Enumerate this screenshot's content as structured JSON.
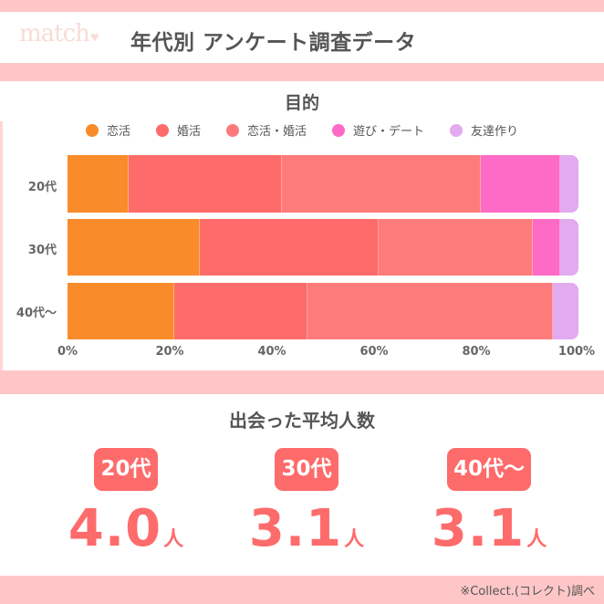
{
  "header": {
    "logo": "match",
    "title": "年代別 アンケート調査データ"
  },
  "colors": {
    "band": "#fec6c6",
    "accent": "#fe6b6b",
    "text": "#555555",
    "series": [
      "#fa8b2a",
      "#fe6b6b",
      "#fe7b7b",
      "#fe6bc6",
      "#e2aaef"
    ]
  },
  "chart_data": {
    "type": "bar",
    "orientation": "horizontal",
    "stacked": true,
    "normalized": true,
    "title": "目的",
    "categories": [
      "20代",
      "30代",
      "40代〜"
    ],
    "series": [
      {
        "name": "恋活",
        "color": "#fa8b2a",
        "values": [
          12,
          26,
          21
        ]
      },
      {
        "name": "婚活",
        "color": "#fe6b6b",
        "values": [
          30,
          35,
          26
        ]
      },
      {
        "name": "恋活・婚活",
        "color": "#fe7b7b",
        "values": [
          39,
          30,
          48
        ]
      },
      {
        "name": "遊び・デート",
        "color": "#fe6bc6",
        "values": [
          15.5,
          5.5,
          0
        ]
      },
      {
        "name": "友達作り",
        "color": "#e2aaef",
        "values": [
          3.5,
          3.5,
          5
        ]
      }
    ],
    "xlabel": "",
    "ylabel": "",
    "xlim": [
      0,
      100
    ],
    "x_ticks": [
      "0%",
      "20%",
      "40%",
      "60%",
      "80%",
      "100%"
    ],
    "legend_position": "top",
    "grid": false
  },
  "legend": [
    {
      "label": "恋活",
      "color": "#fa8b2a"
    },
    {
      "label": "婚活",
      "color": "#fe6b6b"
    },
    {
      "label": "恋活・婚活",
      "color": "#fe7b7b"
    },
    {
      "label": "遊び・デート",
      "color": "#fe6bc6"
    },
    {
      "label": "友達作り",
      "color": "#e2aaef"
    }
  ],
  "average_section": {
    "title": "出会った平均人数",
    "items": [
      {
        "age": "20代",
        "value": "4.0",
        "unit": "人"
      },
      {
        "age": "30代",
        "value": "3.1",
        "unit": "人"
      },
      {
        "age": "40代〜",
        "value": "3.1",
        "unit": "人"
      }
    ]
  },
  "footer": {
    "note": "※Collect.(コレクト)調べ"
  }
}
